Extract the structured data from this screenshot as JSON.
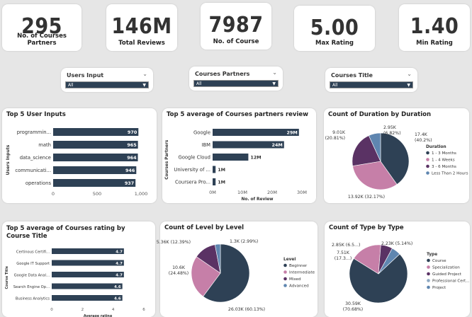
{
  "kpis": [
    {
      "value": "295",
      "label": "No. of Courses Partners"
    },
    {
      "value": "146M",
      "label": "Total Reviews"
    },
    {
      "value": "7987",
      "label": "No. of Course"
    },
    {
      "value": "5.00",
      "label": "Max Rating"
    },
    {
      "value": "1.40",
      "label": "Min Rating"
    }
  ],
  "slicers": [
    {
      "title": "Users Input",
      "value": "All"
    },
    {
      "title": "Courses Partners",
      "value": "All"
    },
    {
      "title": "Courses Title",
      "value": "All"
    }
  ],
  "panels": {
    "user_inputs": {
      "title": "Top 5 User Inputs"
    },
    "partners_review": {
      "title": "Top 5 average of Courses partners review"
    },
    "duration": {
      "title": "Count of Duration by Duration"
    },
    "rating": {
      "title": "Top 5 average of Courses rating by Course Title"
    },
    "level": {
      "title": "Count of Level by Level"
    },
    "type": {
      "title": "Count of Type by Type"
    }
  },
  "chart_data": [
    {
      "type": "bar",
      "orientation": "horizontal",
      "title": "Top 5 User Inputs",
      "ylabel": "Users Inputs",
      "categories": [
        "programmin...",
        "math",
        "data_science",
        "communicati...",
        "operations"
      ],
      "values": [
        970,
        965,
        964,
        946,
        937
      ],
      "data_labels": [
        "970",
        "965",
        "964",
        "946",
        "937"
      ],
      "xticks": [
        "0",
        "500",
        "1,000"
      ],
      "xlim": [
        0,
        1000
      ],
      "color": "#2e4155"
    },
    {
      "type": "bar",
      "orientation": "horizontal",
      "title": "Top 5 average of Courses partners review",
      "xlabel": "No. of Review",
      "ylabel": "Courses Partners",
      "categories": [
        "Google",
        "IBM",
        "Google Cloud",
        "University of ...",
        "Coursera Pro..."
      ],
      "values": [
        29000000,
        24000000,
        12000000,
        1000000,
        1000000
      ],
      "data_labels": [
        "29M",
        "24M",
        "12M",
        "1M",
        "1M"
      ],
      "xticks": [
        "0M",
        "10M",
        "20M",
        "30M"
      ],
      "xlim": [
        0,
        30000000
      ],
      "color": "#2e4155"
    },
    {
      "type": "pie",
      "title": "Count of Duration by Duration",
      "legend_title": "Duration",
      "slices": [
        {
          "label": "1 - 3 Months",
          "value": 17400,
          "text": "17.4K",
          "pct": "(40.2%)",
          "color": "#2e4155"
        },
        {
          "label": "1 - 4 Weeks",
          "value": 13920,
          "text": "13.92K (32.17%)",
          "pct": "",
          "color": "#c67fa8"
        },
        {
          "label": "3 - 6 Months",
          "value": 9010,
          "text": "9.01K",
          "pct": "(20.81%)",
          "color": "#5a3264"
        },
        {
          "label": "Less Than 2 Hours",
          "value": 2950,
          "text": "2.95K",
          "pct": "(6.82%)",
          "color": "#5f86b0"
        }
      ]
    },
    {
      "type": "bar",
      "orientation": "horizontal",
      "title": "Top 5 average of Courses rating by Course Title",
      "xlabel": "Average rating",
      "ylabel": "Course Title",
      "categories": [
        "Certinous Certifi...",
        "Google IT Support",
        "Google Data Anal...",
        "Search Engine Op...",
        "Business Analytics"
      ],
      "values": [
        4.7,
        4.7,
        4.7,
        4.6,
        4.6
      ],
      "data_labels": [
        "4.7",
        "4.7",
        "4.7",
        "4.6",
        "4.6"
      ],
      "xticks": [
        "0",
        "2",
        "4",
        "6"
      ],
      "xlim": [
        0,
        6
      ],
      "color": "#2e4155"
    },
    {
      "type": "pie",
      "title": "Count of Level by Level",
      "legend_title": "Level",
      "slices": [
        {
          "label": "Beginner",
          "value": 26030,
          "text": "26.03K (60.13%)",
          "pct": "",
          "color": "#2e4155"
        },
        {
          "label": "Intermediate",
          "value": 10600,
          "text": "10.6K",
          "pct": "(24.48%)",
          "color": "#c67fa8"
        },
        {
          "label": "Mixed",
          "value": 5360,
          "text": "5.36K (12.39%)",
          "pct": "",
          "color": "#5a3264"
        },
        {
          "label": "Advanced",
          "value": 1300,
          "text": "1.3K (2.99%)",
          "pct": "",
          "color": "#5f86b0"
        }
      ]
    },
    {
      "type": "pie",
      "title": "Count of Type by Type",
      "legend_title": "Type",
      "slices": [
        {
          "label": "Course",
          "value": 30590,
          "text": "30.59K",
          "pct": "(70.68%)",
          "color": "#2e4155"
        },
        {
          "label": "Specialization",
          "value": 7510,
          "text": "7.51K",
          "pct": "(17.3...)",
          "color": "#c67fa8"
        },
        {
          "label": "Guided Project",
          "value": 2850,
          "text": "2.85K (6.5...)",
          "pct": "",
          "color": "#5a3264"
        },
        {
          "label": "Professional Cert...",
          "value": 0,
          "text": "",
          "pct": "",
          "color": "#8fa9c3"
        },
        {
          "label": "Project",
          "value": 2230,
          "text": "2.23K (5.14%)",
          "pct": "",
          "color": "#5f86b0"
        }
      ]
    }
  ]
}
